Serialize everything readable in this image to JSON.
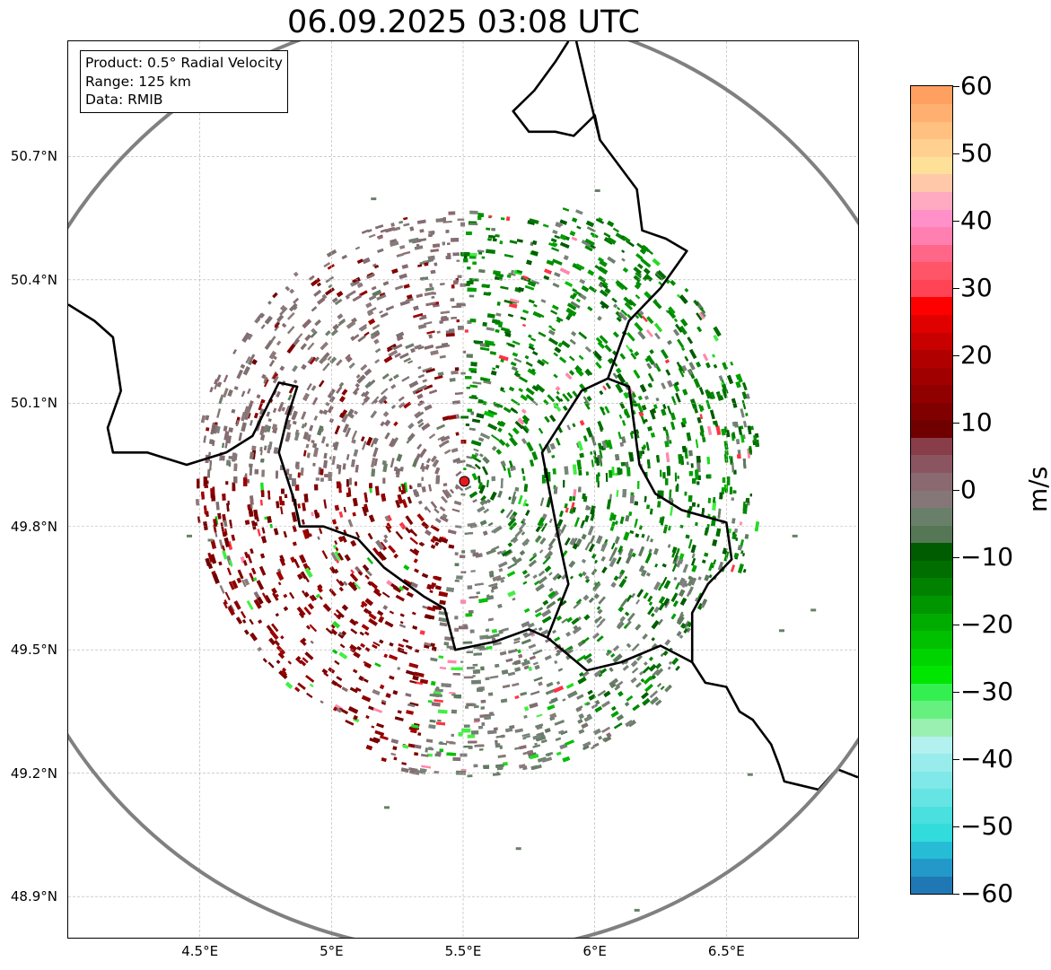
{
  "title": "06.09.2025 03:08 UTC",
  "info_box": {
    "product": "Product: 0.5° Radial Velocity",
    "range": "Range: 125 km",
    "data": "Data: RMIB"
  },
  "map": {
    "lat_ticks": [
      "50.7°N",
      "50.4°N",
      "50.1°N",
      "49.8°N",
      "49.5°N",
      "49.2°N",
      "48.9°N"
    ],
    "lat_values": [
      50.7,
      50.4,
      50.1,
      49.8,
      49.5,
      49.2,
      48.9
    ],
    "lon_ticks": [
      "4.5°E",
      "5°E",
      "5.5°E",
      "6°E",
      "6.5°E"
    ],
    "lon_values": [
      4.5,
      5.0,
      5.5,
      6.0,
      6.5
    ],
    "lat_range": [
      48.8,
      50.98
    ],
    "lon_range": [
      4.0,
      7.0
    ],
    "radar_site": {
      "lat": 49.91,
      "lon": 5.505
    },
    "radar_marker_color": "#e31a1c",
    "range_ring_color": "#808080",
    "border_color": "#000000",
    "grid_color": "#b0b0b0"
  },
  "colorbar": {
    "unit": "m/s",
    "ticks": [
      "60",
      "50",
      "40",
      "30",
      "20",
      "10",
      "0",
      "−10",
      "−20",
      "−30",
      "−40",
      "−50",
      "−60"
    ],
    "tick_values": [
      60,
      50,
      40,
      30,
      20,
      10,
      0,
      -10,
      -20,
      -30,
      -40,
      -50,
      -60
    ],
    "range": [
      -60,
      60
    ],
    "colors_bottom_to_top": [
      "#1f78b4",
      "#2399c9",
      "#26bcd6",
      "#33dcdc",
      "#4ae0e0",
      "#66e4e4",
      "#80e8e8",
      "#99ecec",
      "#b3f0f0",
      "#99f0b0",
      "#66f080",
      "#33f050",
      "#00e600",
      "#00d400",
      "#00c000",
      "#00ac00",
      "#009600",
      "#008200",
      "#006e00",
      "#005c00",
      "#557755",
      "#6a7f6a",
      "#857777",
      "#8a6a70",
      "#8a5560",
      "#883d48",
      "#700000",
      "#800000",
      "#900000",
      "#a00000",
      "#b00000",
      "#c80000",
      "#e00000",
      "#ff0000",
      "#ff4455",
      "#ff5566",
      "#ff6688",
      "#ff80b0",
      "#ff90c8",
      "#ffaac0",
      "#ffc8a8",
      "#ffe098",
      "#ffd090",
      "#ffc080",
      "#ffb070",
      "#ffa060"
    ]
  }
}
